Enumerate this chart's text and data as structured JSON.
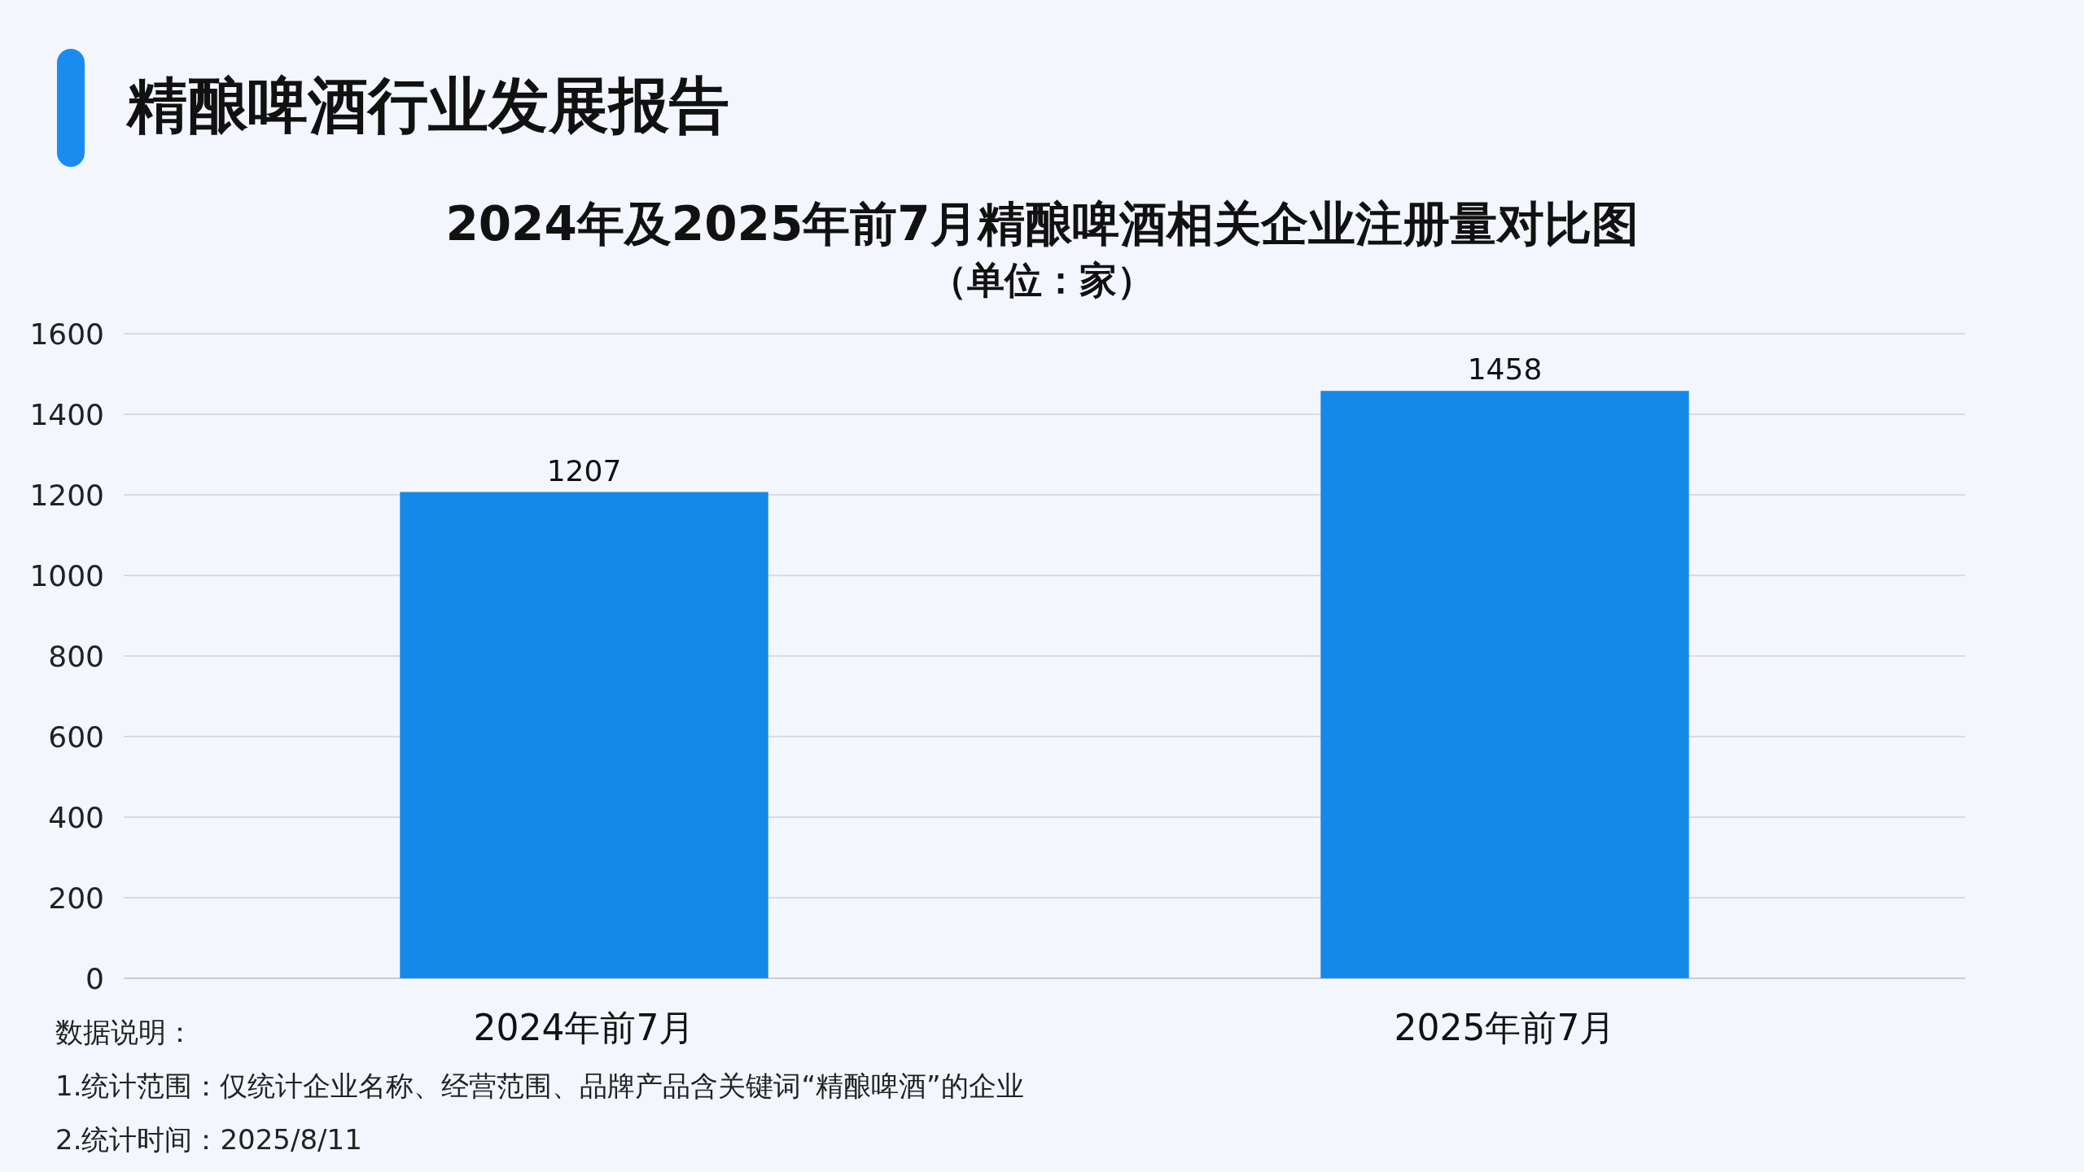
{
  "chart_data": {
    "type": "bar",
    "title": "精酿啤酒行业发展报告",
    "subtitle": "2024年及2025年前7月精酿啤酒相关企业注册量对比图",
    "annotations": [
      "（单位：家）",
      "数据说明：",
      "1.统计范围：仅统计企业名称、经营范围、品牌产品含关键词“精酿啤酒”的企业",
      "2.统计时间：2025/8/11"
    ],
    "categories": [
      "2024年前7月",
      "2025年前7月"
    ],
    "values": [
      1207,
      1458
    ],
    "color": "#1589e8",
    "ylim": [
      0,
      1600
    ],
    "yticks": [
      0,
      200,
      400,
      600,
      800,
      1000,
      1200,
      1400,
      1600
    ],
    "grid": "y",
    "data_labels": true
  }
}
